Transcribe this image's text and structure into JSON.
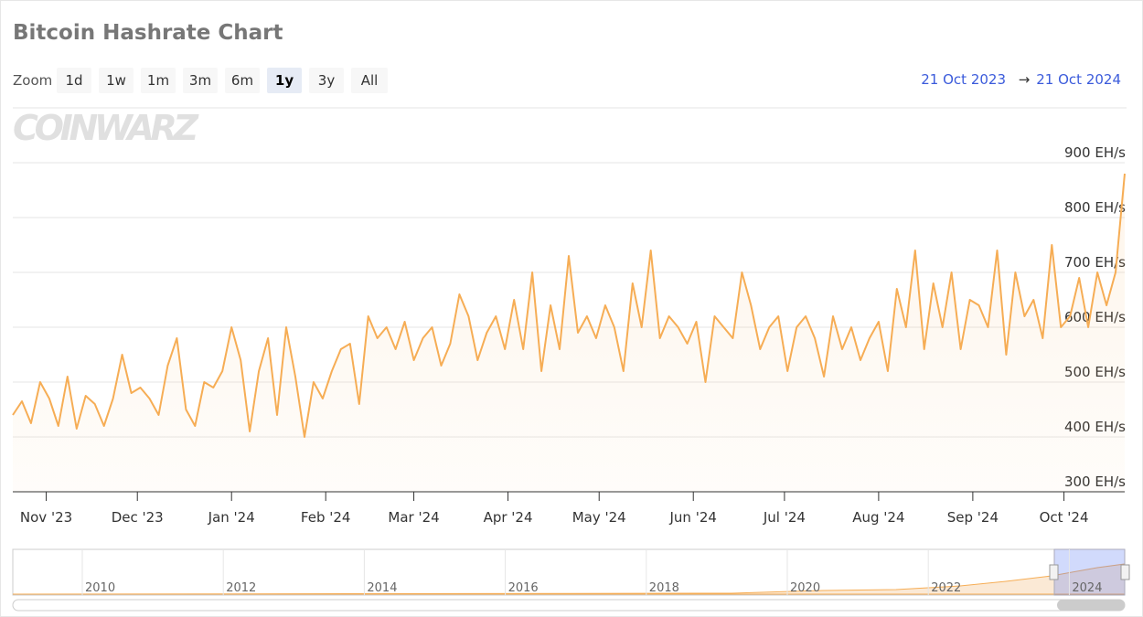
{
  "chart_data": {
    "type": "area",
    "title": "Bitcoin Hashrate Chart",
    "zoom_label": "Zoom",
    "zoom_buttons": [
      "1d",
      "1w",
      "1m",
      "3m",
      "6m",
      "1y",
      "3y",
      "All"
    ],
    "zoom_selected": "1y",
    "range_from": "21 Oct 2023",
    "range_arrow": "→",
    "range_to": "21 Oct 2024",
    "watermark": "COINWARZ",
    "color": "#f6ad55",
    "grid": true,
    "xlim": [
      "2023-10-21",
      "2024-10-21"
    ],
    "xticks": [
      {
        "value": "2023-11-01",
        "label": "Nov '23"
      },
      {
        "value": "2023-12-01",
        "label": "Dec '23"
      },
      {
        "value": "2024-01-01",
        "label": "Jan '24"
      },
      {
        "value": "2024-02-01",
        "label": "Feb '24"
      },
      {
        "value": "2024-03-01",
        "label": "Mar '24"
      },
      {
        "value": "2024-04-01",
        "label": "Apr '24"
      },
      {
        "value": "2024-05-01",
        "label": "May '24"
      },
      {
        "value": "2024-06-01",
        "label": "Jun '24"
      },
      {
        "value": "2024-07-01",
        "label": "Jul '24"
      },
      {
        "value": "2024-08-01",
        "label": "Aug '24"
      },
      {
        "value": "2024-09-01",
        "label": "Sep '24"
      },
      {
        "value": "2024-10-01",
        "label": "Oct '24"
      }
    ],
    "ylim": [
      300,
      1000
    ],
    "yticks": [
      {
        "value": 300,
        "label": "300 EH/s"
      },
      {
        "value": 400,
        "label": "400 EH/s"
      },
      {
        "value": 500,
        "label": "500 EH/s"
      },
      {
        "value": 600,
        "label": "600 EH/s"
      },
      {
        "value": 700,
        "label": "700 EH/s"
      },
      {
        "value": 800,
        "label": "800 EH/s"
      },
      {
        "value": 900,
        "label": "900 EH/s"
      }
    ],
    "x": [
      "2023-10-21",
      "2023-10-24",
      "2023-10-27",
      "2023-10-30",
      "2023-11-02",
      "2023-11-05",
      "2023-11-08",
      "2023-11-11",
      "2023-11-14",
      "2023-11-17",
      "2023-11-20",
      "2023-11-23",
      "2023-11-26",
      "2023-11-29",
      "2023-12-02",
      "2023-12-05",
      "2023-12-08",
      "2023-12-11",
      "2023-12-14",
      "2023-12-17",
      "2023-12-20",
      "2023-12-23",
      "2023-12-26",
      "2023-12-29",
      "2024-01-01",
      "2024-01-04",
      "2024-01-07",
      "2024-01-10",
      "2024-01-13",
      "2024-01-16",
      "2024-01-19",
      "2024-01-22",
      "2024-01-25",
      "2024-01-28",
      "2024-01-31",
      "2024-02-03",
      "2024-02-06",
      "2024-02-09",
      "2024-02-12",
      "2024-02-15",
      "2024-02-18",
      "2024-02-21",
      "2024-02-24",
      "2024-02-27",
      "2024-03-01",
      "2024-03-04",
      "2024-03-07",
      "2024-03-10",
      "2024-03-13",
      "2024-03-16",
      "2024-03-19",
      "2024-03-22",
      "2024-03-25",
      "2024-03-28",
      "2024-03-31",
      "2024-04-03",
      "2024-04-06",
      "2024-04-09",
      "2024-04-12",
      "2024-04-15",
      "2024-04-18",
      "2024-04-21",
      "2024-04-24",
      "2024-04-27",
      "2024-04-30",
      "2024-05-03",
      "2024-05-06",
      "2024-05-09",
      "2024-05-12",
      "2024-05-15",
      "2024-05-18",
      "2024-05-21",
      "2024-05-24",
      "2024-05-27",
      "2024-05-30",
      "2024-06-02",
      "2024-06-05",
      "2024-06-08",
      "2024-06-11",
      "2024-06-14",
      "2024-06-17",
      "2024-06-20",
      "2024-06-23",
      "2024-06-26",
      "2024-06-29",
      "2024-07-02",
      "2024-07-05",
      "2024-07-08",
      "2024-07-11",
      "2024-07-14",
      "2024-07-17",
      "2024-07-20",
      "2024-07-23",
      "2024-07-26",
      "2024-07-29",
      "2024-08-01",
      "2024-08-04",
      "2024-08-07",
      "2024-08-10",
      "2024-08-13",
      "2024-08-16",
      "2024-08-19",
      "2024-08-22",
      "2024-08-25",
      "2024-08-28",
      "2024-08-31",
      "2024-09-03",
      "2024-09-06",
      "2024-09-09",
      "2024-09-12",
      "2024-09-15",
      "2024-09-18",
      "2024-09-21",
      "2024-09-24",
      "2024-09-27",
      "2024-09-30",
      "2024-10-03",
      "2024-10-06",
      "2024-10-09",
      "2024-10-12",
      "2024-10-15",
      "2024-10-18",
      "2024-10-21"
    ],
    "values": [
      440,
      465,
      425,
      500,
      470,
      420,
      510,
      415,
      475,
      460,
      420,
      470,
      550,
      480,
      490,
      470,
      440,
      530,
      580,
      450,
      420,
      500,
      490,
      520,
      600,
      540,
      410,
      520,
      580,
      440,
      600,
      510,
      400,
      500,
      470,
      520,
      560,
      570,
      460,
      620,
      580,
      600,
      560,
      610,
      540,
      580,
      600,
      530,
      570,
      660,
      620,
      540,
      590,
      620,
      560,
      650,
      560,
      700,
      520,
      640,
      560,
      730,
      590,
      620,
      580,
      640,
      600,
      520,
      680,
      600,
      740,
      580,
      620,
      600,
      570,
      610,
      500,
      620,
      600,
      580,
      700,
      640,
      560,
      600,
      620,
      520,
      600,
      620,
      580,
      510,
      620,
      560,
      600,
      540,
      580,
      610,
      520,
      670,
      600,
      740,
      560,
      680,
      600,
      700,
      560,
      650,
      640,
      600,
      740,
      550,
      700,
      620,
      650,
      580,
      750,
      600,
      620,
      690,
      600,
      700,
      640,
      700,
      880
    ],
    "navigator_labels": [
      "2010",
      "2012",
      "2014",
      "2016",
      "2018",
      "2020",
      "2022",
      "2024"
    ]
  }
}
